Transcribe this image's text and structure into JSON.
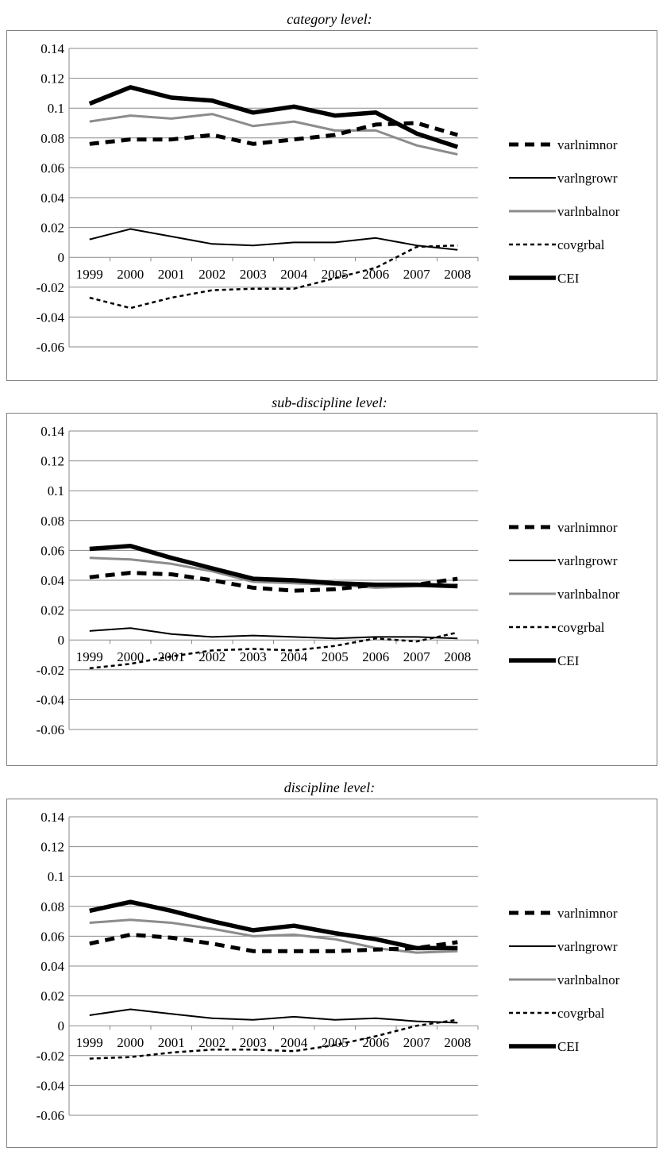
{
  "chart_data": [
    {
      "type": "line",
      "title": "category level:",
      "categories": [
        "1999",
        "2000",
        "2001",
        "2002",
        "2003",
        "2004",
        "2005",
        "2006",
        "2007",
        "2008"
      ],
      "ylim": [
        -0.06,
        0.14
      ],
      "yticks": [
        "0.14",
        "0.12",
        "0.1",
        "0.08",
        "0.06",
        "0.04",
        "0.02",
        "0",
        "-0.02",
        "-0.04",
        "-0.06"
      ],
      "legend_position": "right",
      "series": [
        {
          "name": "varlnimnor",
          "values": [
            0.076,
            0.079,
            0.079,
            0.082,
            0.076,
            0.079,
            0.082,
            0.089,
            0.09,
            0.082
          ]
        },
        {
          "name": "varlngrowr",
          "values": [
            0.012,
            0.019,
            0.014,
            0.009,
            0.008,
            0.01,
            0.01,
            0.013,
            0.008,
            0.005
          ]
        },
        {
          "name": "varlnbalnor",
          "values": [
            0.091,
            0.095,
            0.093,
            0.096,
            0.088,
            0.091,
            0.085,
            0.085,
            0.075,
            0.069
          ]
        },
        {
          "name": "covgrbal",
          "values": [
            -0.027,
            -0.034,
            -0.027,
            -0.022,
            -0.021,
            -0.021,
            -0.014,
            -0.007,
            0.007,
            0.008
          ]
        },
        {
          "name": "CEI",
          "values": [
            0.103,
            0.114,
            0.107,
            0.105,
            0.097,
            0.101,
            0.095,
            0.097,
            0.083,
            0.074
          ]
        }
      ]
    },
    {
      "type": "line",
      "title": "sub-discipline level:",
      "categories": [
        "1999",
        "2000",
        "2001",
        "2002",
        "2003",
        "2004",
        "2005",
        "2006",
        "2007",
        "2008"
      ],
      "ylim": [
        -0.06,
        0.14
      ],
      "yticks": [
        "0.14",
        "0.12",
        "0.1",
        "0.08",
        "0.06",
        "0.04",
        "0.02",
        "0",
        "-0.02",
        "-0.04",
        "-0.06"
      ],
      "legend_position": "right",
      "series": [
        {
          "name": "varlnimnor",
          "values": [
            0.042,
            0.045,
            0.044,
            0.04,
            0.035,
            0.033,
            0.034,
            0.037,
            0.037,
            0.041
          ]
        },
        {
          "name": "varlngrowr",
          "values": [
            0.006,
            0.008,
            0.004,
            0.002,
            0.003,
            0.002,
            0.001,
            0.002,
            0.002,
            0.001
          ]
        },
        {
          "name": "varlnbalnor",
          "values": [
            0.055,
            0.054,
            0.051,
            0.046,
            0.039,
            0.038,
            0.037,
            0.035,
            0.036,
            0.037
          ]
        },
        {
          "name": "covgrbal",
          "values": [
            -0.019,
            -0.016,
            -0.011,
            -0.007,
            -0.006,
            -0.007,
            -0.004,
            0.001,
            -0.001,
            0.005
          ]
        },
        {
          "name": "CEI",
          "values": [
            0.061,
            0.063,
            0.055,
            0.048,
            0.041,
            0.04,
            0.038,
            0.037,
            0.037,
            0.036
          ]
        }
      ]
    },
    {
      "type": "line",
      "title": "discipline level:",
      "categories": [
        "1999",
        "2000",
        "2001",
        "2002",
        "2003",
        "2004",
        "2005",
        "2006",
        "2007",
        "2008"
      ],
      "ylim": [
        -0.06,
        0.14
      ],
      "yticks": [
        "0.14",
        "0.12",
        "0.1",
        "0.08",
        "0.06",
        "0.04",
        "0.02",
        "0",
        "-0.02",
        "-0.04",
        "-0.06"
      ],
      "legend_position": "right",
      "series": [
        {
          "name": "varlnimnor",
          "values": [
            0.055,
            0.061,
            0.059,
            0.055,
            0.05,
            0.05,
            0.05,
            0.051,
            0.052,
            0.056
          ]
        },
        {
          "name": "varlngrowr",
          "values": [
            0.007,
            0.011,
            0.008,
            0.005,
            0.004,
            0.006,
            0.004,
            0.005,
            0.003,
            0.002
          ]
        },
        {
          "name": "varlnbalnor",
          "values": [
            0.069,
            0.071,
            0.069,
            0.065,
            0.06,
            0.061,
            0.058,
            0.052,
            0.049,
            0.05
          ]
        },
        {
          "name": "covgrbal",
          "values": [
            -0.022,
            -0.021,
            -0.018,
            -0.016,
            -0.016,
            -0.017,
            -0.013,
            -0.007,
            0.0,
            0.004
          ]
        },
        {
          "name": "CEI",
          "values": [
            0.077,
            0.083,
            0.077,
            0.07,
            0.064,
            0.067,
            0.062,
            0.058,
            0.052,
            0.052
          ]
        }
      ]
    }
  ],
  "styles": {
    "varlnimnor": {
      "color": "#000000",
      "dash": "12,8",
      "width": 5
    },
    "varlngrowr": {
      "color": "#000000",
      "dash": "",
      "width": 2
    },
    "varlnbalnor": {
      "color": "#8c8c8c",
      "dash": "",
      "width": 3
    },
    "covgrbal": {
      "color": "#000000",
      "dash": "5,4",
      "width": 2.5
    },
    "CEI": {
      "color": "#000000",
      "dash": "",
      "width": 5.5
    },
    "gridline": "#8a8a8a"
  }
}
